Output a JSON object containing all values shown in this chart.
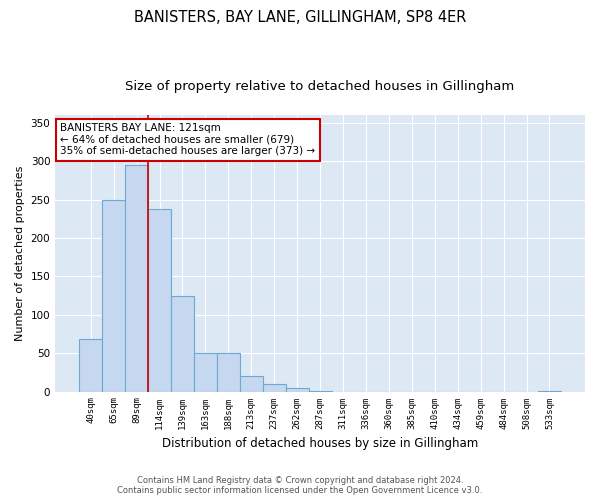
{
  "title": "BANISTERS, BAY LANE, GILLINGHAM, SP8 4ER",
  "subtitle": "Size of property relative to detached houses in Gillingham",
  "xlabel": "Distribution of detached houses by size in Gillingham",
  "ylabel": "Number of detached properties",
  "footer_line1": "Contains HM Land Registry data © Crown copyright and database right 2024.",
  "footer_line2": "Contains public sector information licensed under the Open Government Licence v3.0.",
  "categories": [
    "40sqm",
    "65sqm",
    "89sqm",
    "114sqm",
    "139sqm",
    "163sqm",
    "188sqm",
    "213sqm",
    "237sqm",
    "262sqm",
    "287sqm",
    "311sqm",
    "336sqm",
    "360sqm",
    "385sqm",
    "410sqm",
    "434sqm",
    "459sqm",
    "484sqm",
    "508sqm",
    "533sqm"
  ],
  "bar_values": [
    68,
    250,
    295,
    238,
    125,
    50,
    50,
    20,
    10,
    5,
    1,
    0,
    0,
    0,
    0,
    0,
    0,
    0,
    0,
    0,
    1
  ],
  "bar_color": "#c5d8ef",
  "bar_edge_color": "#6aaad4",
  "property_line_x": 2.5,
  "property_line_color": "#cc0000",
  "annotation_line1": "BANISTERS BAY LANE: 121sqm",
  "annotation_line2": "← 64% of detached houses are smaller (679)",
  "annotation_line3": "35% of semi-detached houses are larger (373) →",
  "annotation_box_color": "#ffffff",
  "annotation_box_edge_color": "#cc0000",
  "ylim": [
    0,
    360
  ],
  "yticks": [
    0,
    50,
    100,
    150,
    200,
    250,
    300,
    350
  ],
  "background_color": "#dde8f5",
  "grid_color": "#ffffff",
  "title_fontsize": 10.5,
  "subtitle_fontsize": 9.5,
  "bar_width": 1.0,
  "figwidth": 6.0,
  "figheight": 5.0,
  "dpi": 100
}
